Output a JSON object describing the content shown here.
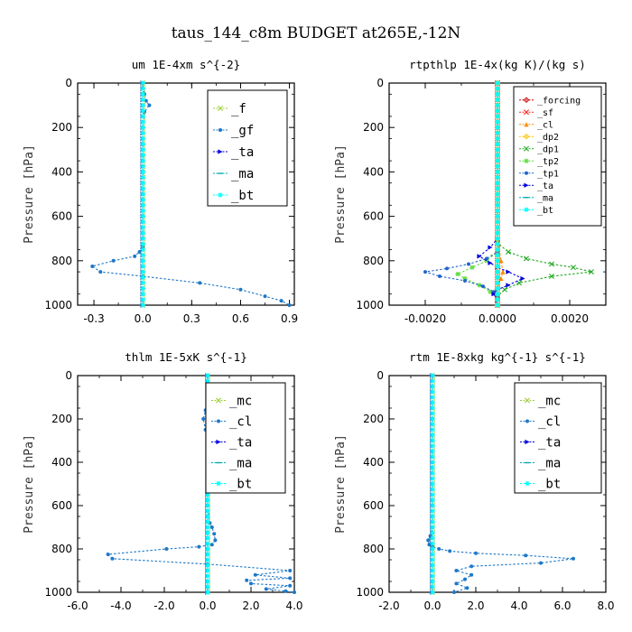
{
  "figure": {
    "title": "taus_144_c8m  BUDGET at265E,-12N"
  },
  "chart_data": [
    {
      "id": "um",
      "type": "line",
      "title": "um  1E-4xm s^{-2}",
      "ylabel": "Pressure [hPa]",
      "ylim": [
        1000,
        0
      ],
      "xlim": [
        -0.4,
        0.93
      ],
      "xticks": [
        "-0.3",
        "0.0",
        "0.3",
        "0.6",
        "0.9"
      ],
      "xtick_values": [
        -0.3,
        0,
        0.3,
        0.6,
        0.9
      ],
      "yticks": [
        "0",
        "200",
        "400",
        "600",
        "800",
        "1000"
      ],
      "ytick_values": [
        0,
        200,
        400,
        600,
        800,
        1000
      ],
      "legend_position": "top-right",
      "series": [
        {
          "name": "_f",
          "color": "#9acd32",
          "marker": "x",
          "x": [
            0,
            0,
            0,
            0,
            0,
            0,
            0,
            0,
            0,
            0,
            0,
            0
          ],
          "y": [
            0,
            100,
            200,
            300,
            400,
            500,
            600,
            700,
            800,
            850,
            900,
            1000
          ]
        },
        {
          "name": "_gf",
          "color": "#1e78c8",
          "marker": "dot",
          "x": [
            0,
            0.01,
            0.02,
            0.04,
            0.01,
            0.0,
            0.0,
            0.0,
            0.0,
            0.0,
            0.0,
            0.0,
            -0.02,
            -0.05,
            -0.18,
            -0.31,
            -0.26,
            0.0,
            0.35,
            0.6,
            0.75,
            0.85,
            0.9
          ],
          "y": [
            0,
            50,
            80,
            100,
            130,
            200,
            300,
            400,
            500,
            600,
            700,
            740,
            760,
            780,
            800,
            825,
            850,
            870,
            900,
            930,
            960,
            980,
            1000
          ]
        },
        {
          "name": "_ta",
          "color": "#0000dd",
          "marker": "arrow",
          "x": [
            0,
            0,
            0,
            0,
            0,
            0
          ],
          "y": [
            0,
            200,
            400,
            600,
            800,
            1000
          ]
        },
        {
          "name": "_ma",
          "color": "#00aaaa",
          "marker": "dash",
          "x": [
            0,
            0,
            0,
            0,
            0,
            0
          ],
          "y": [
            0,
            200,
            400,
            600,
            800,
            1000
          ]
        },
        {
          "name": "_bt",
          "color": "#00ffff",
          "marker": "star",
          "x": [
            0,
            0,
            0,
            0,
            0,
            0
          ],
          "y": [
            0,
            200,
            400,
            600,
            800,
            1000
          ]
        }
      ]
    },
    {
      "id": "rtpthlp",
      "type": "line",
      "title": "rtpthlp  1E-4x(kg K)/(kg s)",
      "ylabel": "Pressure [hPa]",
      "ylim": [
        1000,
        0
      ],
      "xlim": [
        -0.003,
        0.003
      ],
      "xticks": [
        "-0.0020",
        "0.0000",
        "0.0020"
      ],
      "xtick_values": [
        -0.002,
        0,
        0.002
      ],
      "yticks": [
        "0",
        "200",
        "400",
        "600",
        "800",
        "1000"
      ],
      "ytick_values": [
        0,
        200,
        400,
        600,
        800,
        1000
      ],
      "legend_position": "top-right",
      "series": [
        {
          "name": "_forcing",
          "color": "#cc0000",
          "marker": "diamond",
          "x": [
            0,
            0,
            0,
            0,
            0,
            0,
            0,
            0,
            0,
            0,
            0
          ],
          "y": [
            0,
            100,
            200,
            300,
            400,
            500,
            600,
            700,
            800,
            900,
            1000
          ]
        },
        {
          "name": "_sf",
          "color": "#ff2020",
          "marker": "x",
          "x": [
            0,
            0,
            0,
            0,
            0,
            0,
            0,
            0,
            0,
            0,
            0
          ],
          "y": [
            0,
            100,
            200,
            300,
            400,
            500,
            600,
            700,
            800,
            900,
            1000
          ]
        },
        {
          "name": "_cl",
          "color": "#ff8c00",
          "marker": "triangle",
          "x": [
            0,
            0,
            0.0001,
            0.00015,
            0.0001,
            0,
            0
          ],
          "y": [
            0,
            700,
            800,
            850,
            880,
            920,
            1000
          ]
        },
        {
          "name": "_dp2",
          "color": "#ffc000",
          "marker": "diamond",
          "x": [
            0,
            0,
            0,
            0,
            0
          ],
          "y": [
            0,
            400,
            800,
            900,
            1000
          ]
        },
        {
          "name": "_dp1",
          "color": "#22aa22",
          "marker": "x",
          "x": [
            0,
            0,
            0.0003,
            0.0008,
            0.0015,
            0.0021,
            0.0026,
            0.0015,
            0.0006,
            0.0002,
            0
          ],
          "y": [
            0,
            720,
            760,
            790,
            815,
            830,
            850,
            870,
            900,
            930,
            960
          ]
        },
        {
          "name": "_tp2",
          "color": "#66dd44",
          "marker": "star",
          "x": [
            0,
            0,
            -0.0003,
            -0.0007,
            -0.0011,
            -0.0009,
            -0.0005,
            -0.0002,
            0
          ],
          "y": [
            0,
            760,
            800,
            830,
            860,
            880,
            910,
            940,
            960
          ]
        },
        {
          "name": "_tp1",
          "color": "#2266cc",
          "marker": "dot",
          "x": [
            0,
            0,
            -0.0003,
            -0.0008,
            -0.0014,
            -0.002,
            -0.0016,
            -0.0009,
            -0.0004,
            -0.0001,
            0
          ],
          "y": [
            0,
            760,
            790,
            815,
            835,
            850,
            870,
            890,
            915,
            940,
            960
          ]
        },
        {
          "name": "_ta",
          "color": "#0000dd",
          "marker": "arrow",
          "x": [
            0,
            0,
            -0.0002,
            -0.0005,
            -0.0002,
            0,
            0.0003,
            0.0007,
            0.0003,
            0,
            -0.0001,
            0
          ],
          "y": [
            0,
            700,
            740,
            780,
            810,
            830,
            850,
            880,
            910,
            930,
            950,
            980
          ]
        },
        {
          "name": "_ma",
          "color": "#00aaaa",
          "marker": "dash",
          "x": [
            0,
            0,
            0,
            0,
            0,
            0
          ],
          "y": [
            0,
            200,
            400,
            600,
            800,
            1000
          ]
        },
        {
          "name": "_bt",
          "color": "#00ffff",
          "marker": "star",
          "x": [
            0,
            0,
            0,
            0,
            0,
            0
          ],
          "y": [
            0,
            200,
            400,
            600,
            800,
            1000
          ]
        }
      ]
    },
    {
      "id": "thlm",
      "type": "line",
      "title": "thlm  1E-5xK s^{-1}",
      "ylabel": "Pressure [hPa]",
      "ylim": [
        1000,
        0
      ],
      "xlim": [
        -6,
        4
      ],
      "xticks": [
        "-6.0",
        "-4.0",
        "-2.0",
        "0.0",
        "2.0",
        "4.0"
      ],
      "xtick_values": [
        -6,
        -4,
        -2,
        0,
        2,
        4
      ],
      "yticks": [
        "0",
        "200",
        "400",
        "600",
        "800",
        "1000"
      ],
      "ytick_values": [
        0,
        200,
        400,
        600,
        800,
        1000
      ],
      "legend_position": "top-right",
      "series": [
        {
          "name": "_mc",
          "color": "#9acd32",
          "marker": "x",
          "x": [
            0,
            0,
            0,
            0,
            0,
            0,
            0,
            0,
            0,
            0,
            0
          ],
          "y": [
            0,
            100,
            200,
            300,
            400,
            500,
            600,
            700,
            800,
            900,
            1000
          ]
        },
        {
          "name": "_cl",
          "color": "#1e78c8",
          "marker": "dot",
          "x": [
            0,
            0.1,
            0.3,
            0.15,
            -0.1,
            -0.2,
            -0.1,
            0,
            0,
            0,
            0.1,
            0.2,
            0.3,
            0.35,
            0.2,
            -0.4,
            -1.9,
            -4.6,
            -4.4,
            0,
            3.8,
            2.2,
            3.8,
            1.8,
            2.0,
            3.8,
            2.7,
            3.6,
            4.0
          ],
          "y": [
            0,
            60,
            100,
            130,
            160,
            200,
            250,
            300,
            400,
            600,
            680,
            700,
            730,
            760,
            780,
            790,
            800,
            825,
            845,
            870,
            900,
            920,
            935,
            945,
            960,
            970,
            985,
            995,
            1000
          ]
        },
        {
          "name": "_ta",
          "color": "#0000dd",
          "marker": "arrow",
          "x": [
            0,
            0,
            0,
            0,
            0,
            0
          ],
          "y": [
            0,
            200,
            400,
            600,
            800,
            1000
          ]
        },
        {
          "name": "_ma",
          "color": "#00aaaa",
          "marker": "dash",
          "x": [
            0,
            0,
            0,
            0,
            0,
            0
          ],
          "y": [
            0,
            200,
            400,
            600,
            800,
            1000
          ]
        },
        {
          "name": "_bt",
          "color": "#00ffff",
          "marker": "star",
          "x": [
            0,
            0,
            0,
            0,
            0,
            0
          ],
          "y": [
            0,
            200,
            400,
            600,
            800,
            1000
          ]
        }
      ]
    },
    {
      "id": "rtm",
      "type": "line",
      "title": "rtm  1E-8xkg kg^{-1} s^{-1}",
      "ylabel": "Pressure [hPa]",
      "ylim": [
        1000,
        0
      ],
      "xlim": [
        -2,
        8
      ],
      "xticks": [
        "-2.0",
        "0.0",
        "2.0",
        "4.0",
        "6.0",
        "8.0"
      ],
      "xtick_values": [
        -2,
        0,
        2,
        4,
        6,
        8
      ],
      "yticks": [
        "0",
        "200",
        "400",
        "600",
        "800",
        "1000"
      ],
      "ytick_values": [
        0,
        200,
        400,
        600,
        800,
        1000
      ],
      "legend_position": "top-right",
      "series": [
        {
          "name": "_mc",
          "color": "#9acd32",
          "marker": "x",
          "x": [
            0,
            0,
            0,
            0,
            0,
            0,
            0,
            0,
            0,
            0,
            0
          ],
          "y": [
            0,
            100,
            200,
            300,
            400,
            500,
            600,
            700,
            800,
            900,
            1000
          ]
        },
        {
          "name": "_cl",
          "color": "#1e78c8",
          "marker": "dot",
          "x": [
            0,
            0,
            0,
            0,
            0,
            -0.1,
            -0.2,
            -0.15,
            0,
            0.3,
            0.8,
            2.0,
            4.3,
            6.5,
            5.0,
            1.8,
            1.1,
            1.8,
            1.5,
            1.1,
            1.6,
            1.0
          ],
          "y": [
            0,
            200,
            400,
            600,
            700,
            740,
            760,
            780,
            790,
            800,
            810,
            820,
            830,
            845,
            865,
            880,
            900,
            920,
            940,
            960,
            980,
            1000
          ]
        },
        {
          "name": "_ta",
          "color": "#0000dd",
          "marker": "arrow",
          "x": [
            0,
            0,
            0,
            0,
            0,
            0
          ],
          "y": [
            0,
            200,
            400,
            600,
            800,
            1000
          ]
        },
        {
          "name": "_ma",
          "color": "#00aaaa",
          "marker": "dash",
          "x": [
            0,
            0,
            0,
            0,
            0,
            0
          ],
          "y": [
            0,
            200,
            400,
            600,
            800,
            1000
          ]
        },
        {
          "name": "_bt",
          "color": "#00ffff",
          "marker": "star",
          "x": [
            0,
            0,
            0,
            0,
            0,
            0
          ],
          "y": [
            0,
            200,
            400,
            600,
            800,
            1000
          ]
        }
      ]
    }
  ]
}
